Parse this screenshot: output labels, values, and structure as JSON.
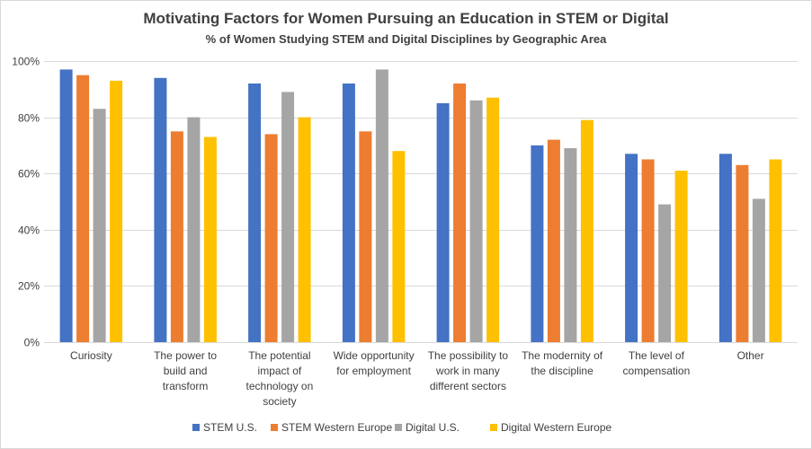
{
  "chart_data": {
    "type": "bar",
    "title": "Motivating Factors for Women Pursuing an Education in STEM or Digital",
    "subtitle": "% of Women Studying STEM and Digital Disciplines by Geographic Area",
    "xlabel": "",
    "ylabel": "",
    "ylim": [
      0,
      100
    ],
    "yticks": [
      0,
      20,
      40,
      60,
      80,
      100
    ],
    "ytick_labels": [
      "0%",
      "20%",
      "40%",
      "60%",
      "80%",
      "100%"
    ],
    "grid": true,
    "legend_position": "bottom",
    "categories": [
      [
        "Curiosity"
      ],
      [
        "The power to",
        "build and",
        "transform"
      ],
      [
        "The potential",
        "impact of",
        "technology on",
        "society"
      ],
      [
        "Wide opportunity",
        "for employment"
      ],
      [
        "The possibility to",
        "work in many",
        "different sectors"
      ],
      [
        "The modernity of",
        "the discipline"
      ],
      [
        "The level of",
        "compensation"
      ],
      [
        "Other"
      ]
    ],
    "series": [
      {
        "name": "STEM U.S.",
        "color": "#4472c4",
        "values": [
          97,
          94,
          92,
          92,
          85,
          70,
          67,
          67
        ]
      },
      {
        "name": "STEM Western Europe",
        "color": "#ed7d31",
        "values": [
          95,
          75,
          74,
          75,
          92,
          72,
          65,
          63
        ]
      },
      {
        "name": "Digital U.S.",
        "color": "#a5a5a5",
        "values": [
          83,
          80,
          89,
          97,
          86,
          69,
          49,
          51
        ]
      },
      {
        "name": "Digital Western Europe",
        "color": "#ffc000",
        "values": [
          93,
          73,
          80,
          68,
          87,
          79,
          61,
          65
        ]
      }
    ]
  }
}
